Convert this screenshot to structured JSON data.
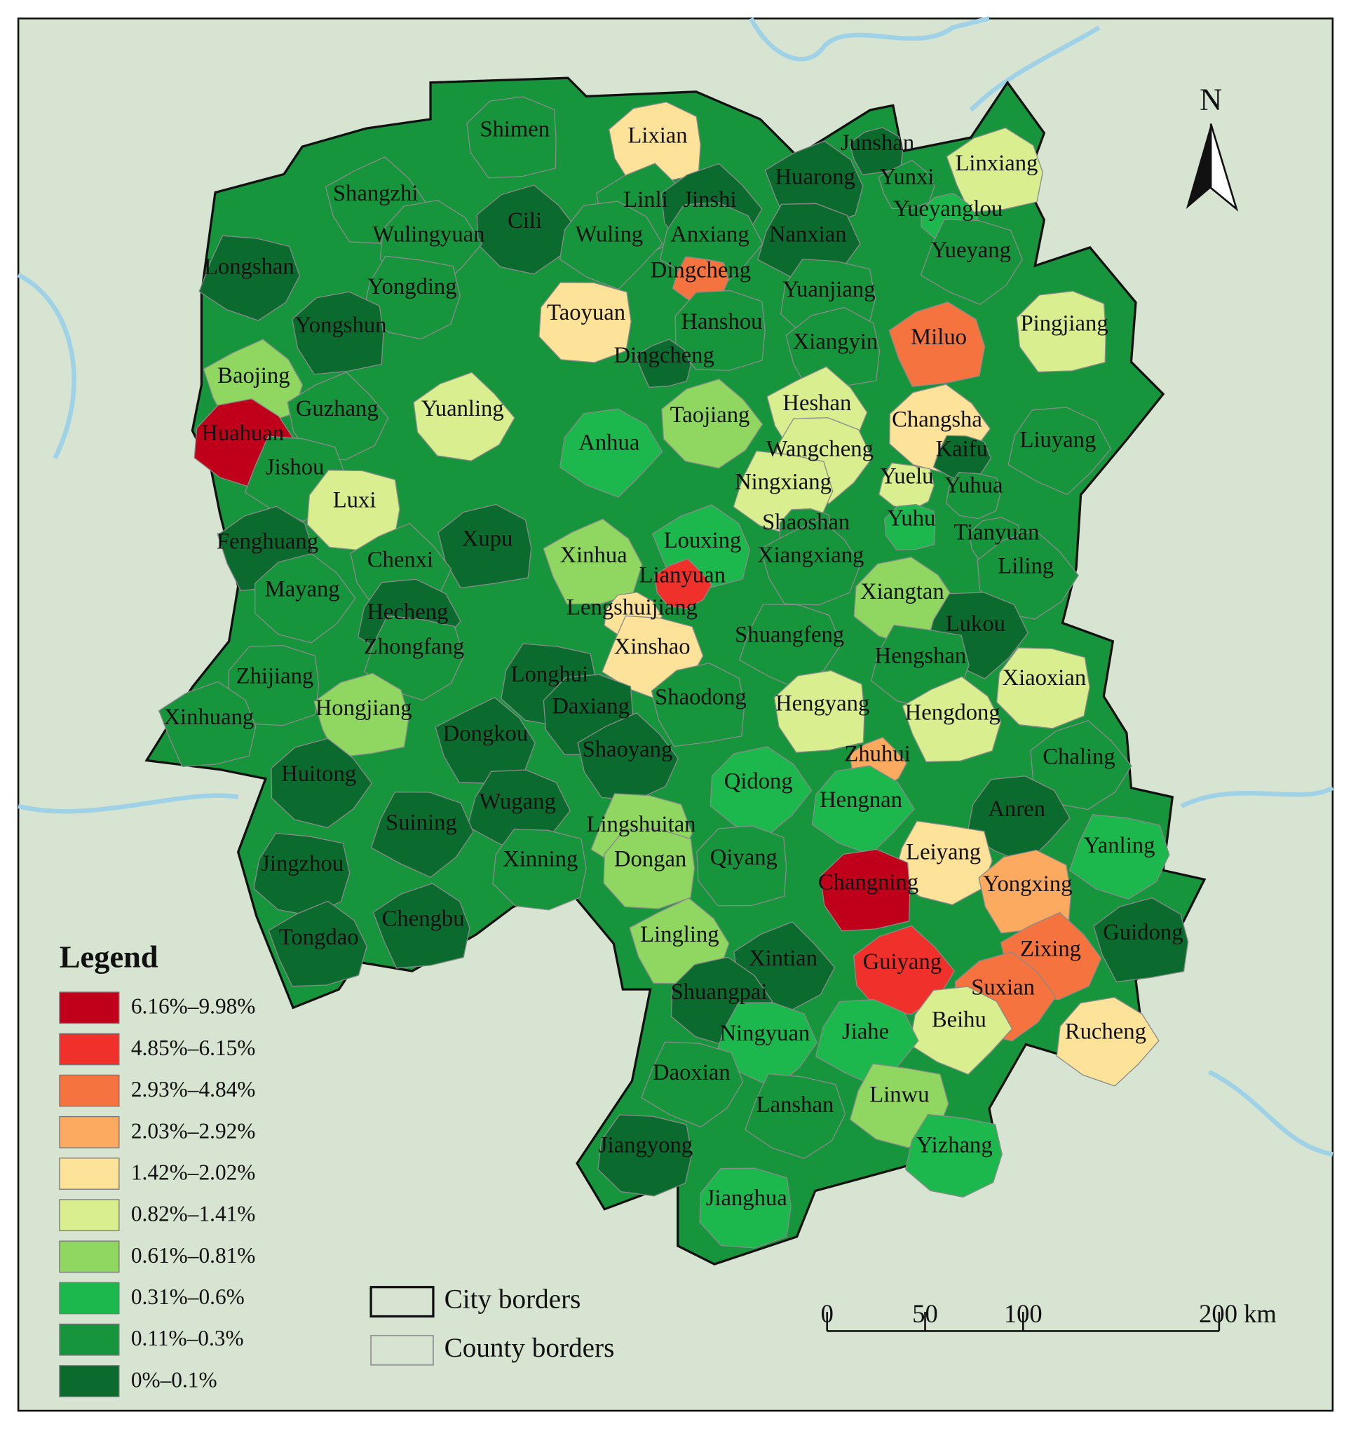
{
  "map": {
    "north": "N",
    "legend": {
      "title": "Legend",
      "entries": [
        {
          "label": "6.16%–9.98%",
          "color": "#c0001a"
        },
        {
          "label": "4.85%–6.15%",
          "color": "#f0302a"
        },
        {
          "label": "2.93%–4.84%",
          "color": "#f5733e"
        },
        {
          "label": "2.03%–2.92%",
          "color": "#fcaa5f"
        },
        {
          "label": "1.42%–2.02%",
          "color": "#fde29a"
        },
        {
          "label": "0.82%–1.41%",
          "color": "#d8ee8f"
        },
        {
          "label": "0.61%–0.81%",
          "color": "#8fd760"
        },
        {
          "label": "0.31%–0.6%",
          "color": "#1cb84d"
        },
        {
          "label": "0.11%–0.3%",
          "color": "#16953c"
        },
        {
          "label": "0%–0.1%",
          "color": "#0b6b2e"
        }
      ]
    },
    "borders": [
      "City borders",
      "County borders"
    ],
    "scale_bar": {
      "ticks": [
        {
          "value": 0,
          "label": "0"
        },
        {
          "value": 50,
          "label": "50"
        },
        {
          "value": 100,
          "label": "100"
        },
        {
          "value": 200,
          "label": "200 km"
        }
      ]
    },
    "counties": [
      {
        "name": "Shimen",
        "color": "#16953c"
      },
      {
        "name": "Lixian",
        "color": "#fde29a"
      },
      {
        "name": "Junshan",
        "color": "#0b6b2e"
      },
      {
        "name": "Linxiang",
        "color": "#d8ee8f"
      },
      {
        "name": "Huarong",
        "color": "#0b6b2e"
      },
      {
        "name": "Yunxi",
        "color": "#16953c"
      },
      {
        "name": "Shangzhi",
        "color": "#16953c"
      },
      {
        "name": "Linli",
        "color": "#16953c"
      },
      {
        "name": "Jinshi",
        "color": "#0b6b2e"
      },
      {
        "name": "Cili",
        "color": "#0b6b2e"
      },
      {
        "name": "Yueyanglou",
        "color": "#1cb84d"
      },
      {
        "name": "Wulingyuan",
        "color": "#16953c"
      },
      {
        "name": "Wuling",
        "color": "#16953c"
      },
      {
        "name": "Anxiang",
        "color": "#16953c"
      },
      {
        "name": "Nanxian",
        "color": "#0b6b2e"
      },
      {
        "name": "Yueyang",
        "color": "#16953c"
      },
      {
        "name": "Longshan",
        "color": "#0b6b2e"
      },
      {
        "name": "Dingcheng",
        "color": "#f5733e"
      },
      {
        "name": "Yongding",
        "color": "#16953c"
      },
      {
        "name": "Yuanjiang",
        "color": "#16953c"
      },
      {
        "name": "Taoyuan",
        "color": "#fde29a"
      },
      {
        "name": "Hanshou",
        "color": "#16953c"
      },
      {
        "name": "Pingjiang",
        "color": "#d8ee8f"
      },
      {
        "name": "Yongshun",
        "color": "#0b6b2e"
      },
      {
        "name": "Xiangyin",
        "color": "#16953c"
      },
      {
        "name": "Miluo",
        "color": "#f5733e"
      },
      {
        "name": "Dingcheng",
        "color": "#0b6b2e"
      },
      {
        "name": "Baojing",
        "color": "#8fd760"
      },
      {
        "name": "Heshan",
        "color": "#d8ee8f"
      },
      {
        "name": "Guzhang",
        "color": "#16953c"
      },
      {
        "name": "Yuanling",
        "color": "#d8ee8f"
      },
      {
        "name": "Taojiang",
        "color": "#8fd760"
      },
      {
        "name": "Changsha",
        "color": "#fde29a"
      },
      {
        "name": "Huahuan",
        "color": "#c0001a"
      },
      {
        "name": "Anhua",
        "color": "#1cb84d"
      },
      {
        "name": "Liuyang",
        "color": "#16953c"
      },
      {
        "name": "Wangcheng",
        "color": "#d8ee8f"
      },
      {
        "name": "Kaifu",
        "color": "#0b6b2e"
      },
      {
        "name": "Jishou",
        "color": "#16953c"
      },
      {
        "name": "Ningxiang",
        "color": "#d8ee8f"
      },
      {
        "name": "Yuelu",
        "color": "#d8ee8f"
      },
      {
        "name": "Yuhua",
        "color": "#16953c"
      },
      {
        "name": "Luxi",
        "color": "#d8ee8f"
      },
      {
        "name": "Shaoshan",
        "color": "#16953c"
      },
      {
        "name": "Yuhu",
        "color": "#1cb84d"
      },
      {
        "name": "Tianyuan",
        "color": "#16953c"
      },
      {
        "name": "Xupu",
        "color": "#0b6b2e"
      },
      {
        "name": "Fenghuang",
        "color": "#0b6b2e"
      },
      {
        "name": "Louxing",
        "color": "#1cb84d"
      },
      {
        "name": "Xinhua",
        "color": "#8fd760"
      },
      {
        "name": "Xiangxiang",
        "color": "#16953c"
      },
      {
        "name": "Chenxi",
        "color": "#16953c"
      },
      {
        "name": "Lianyuan",
        "color": "#f0302a"
      },
      {
        "name": "Liling",
        "color": "#16953c"
      },
      {
        "name": "Mayang",
        "color": "#16953c"
      },
      {
        "name": "Xiangtan",
        "color": "#8fd760"
      },
      {
        "name": "Lengshuijiang",
        "color": "#fde29a"
      },
      {
        "name": "Hecheng",
        "color": "#0b6b2e"
      },
      {
        "name": "Lukou",
        "color": "#0b6b2e"
      },
      {
        "name": "Shuangfeng",
        "color": "#16953c"
      },
      {
        "name": "Xinshao",
        "color": "#fde29a"
      },
      {
        "name": "Zhongfang",
        "color": "#16953c"
      },
      {
        "name": "Hengshan",
        "color": "#16953c"
      },
      {
        "name": "Longhui",
        "color": "#0b6b2e"
      },
      {
        "name": "Xiaoxian",
        "color": "#d8ee8f"
      },
      {
        "name": "Zhijiang",
        "color": "#16953c"
      },
      {
        "name": "Daxiang",
        "color": "#0b6b2e"
      },
      {
        "name": "Hengyang",
        "color": "#d8ee8f"
      },
      {
        "name": "Shaodong",
        "color": "#16953c"
      },
      {
        "name": "Hongjiang",
        "color": "#8fd760"
      },
      {
        "name": "Xinhuang",
        "color": "#16953c"
      },
      {
        "name": "Hengdong",
        "color": "#d8ee8f"
      },
      {
        "name": "Dongkou",
        "color": "#0b6b2e"
      },
      {
        "name": "Shaoyang",
        "color": "#0b6b2e"
      },
      {
        "name": "Zhuhui",
        "color": "#fcaa5f"
      },
      {
        "name": "Chaling",
        "color": "#16953c"
      },
      {
        "name": "Huitong",
        "color": "#0b6b2e"
      },
      {
        "name": "Qidong",
        "color": "#1cb84d"
      },
      {
        "name": "Hengnan",
        "color": "#1cb84d"
      },
      {
        "name": "Anren",
        "color": "#0b6b2e"
      },
      {
        "name": "Wugang",
        "color": "#0b6b2e"
      },
      {
        "name": "Suining",
        "color": "#0b6b2e"
      },
      {
        "name": "Lingshuitan",
        "color": "#8fd760"
      },
      {
        "name": "Yanling",
        "color": "#1cb84d"
      },
      {
        "name": "Leiyang",
        "color": "#fde29a"
      },
      {
        "name": "Jingzhou",
        "color": "#0b6b2e"
      },
      {
        "name": "Xinning",
        "color": "#16953c"
      },
      {
        "name": "Dongan",
        "color": "#8fd760"
      },
      {
        "name": "Qiyang",
        "color": "#16953c"
      },
      {
        "name": "Changning",
        "color": "#c0001a"
      },
      {
        "name": "Yongxing",
        "color": "#fcaa5f"
      },
      {
        "name": "Guidong",
        "color": "#0b6b2e"
      },
      {
        "name": "Chengbu",
        "color": "#0b6b2e"
      },
      {
        "name": "Tongdao",
        "color": "#0b6b2e"
      },
      {
        "name": "Lingling",
        "color": "#8fd760"
      },
      {
        "name": "Zixing",
        "color": "#f5733e"
      },
      {
        "name": "Xintian",
        "color": "#0b6b2e"
      },
      {
        "name": "Guiyang",
        "color": "#f0302a"
      },
      {
        "name": "Suxian",
        "color": "#f5733e"
      },
      {
        "name": "Shuangpai",
        "color": "#0b6b2e"
      },
      {
        "name": "Rucheng",
        "color": "#fde29a"
      },
      {
        "name": "Beihu",
        "color": "#d8ee8f"
      },
      {
        "name": "Jiahe",
        "color": "#1cb84d"
      },
      {
        "name": "Ningyuan",
        "color": "#1cb84d"
      },
      {
        "name": "Daoxian",
        "color": "#16953c"
      },
      {
        "name": "Lanshan",
        "color": "#16953c"
      },
      {
        "name": "Linwu",
        "color": "#8fd760"
      },
      {
        "name": "Yizhang",
        "color": "#1cb84d"
      },
      {
        "name": "Jiangyong",
        "color": "#0b6b2e"
      },
      {
        "name": "Jianghua",
        "color": "#1cb84d"
      }
    ]
  }
}
